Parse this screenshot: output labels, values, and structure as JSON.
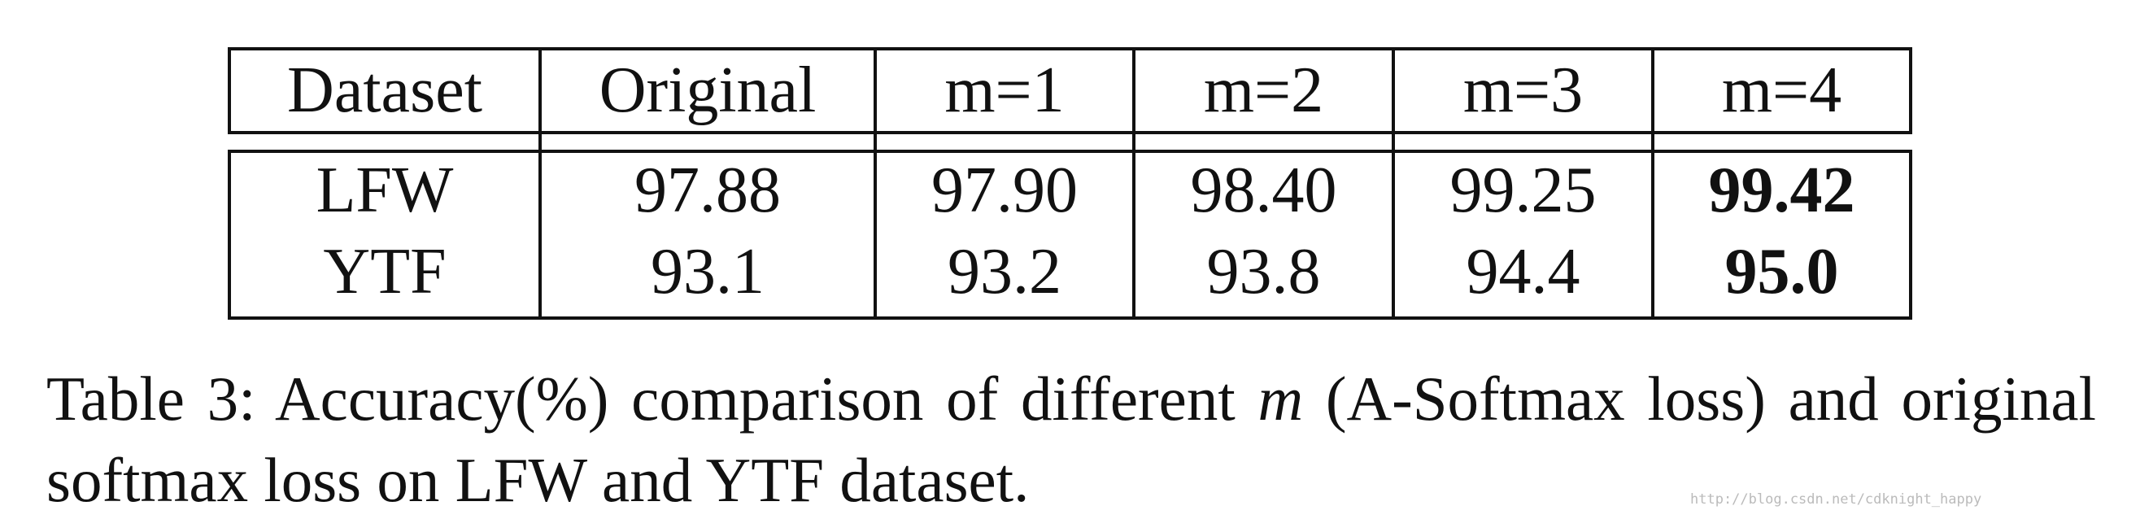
{
  "table": {
    "header": [
      "Dataset",
      "Original",
      "m=1",
      "m=2",
      "m=3",
      "m=4"
    ],
    "rows": [
      [
        "LFW",
        "97.88",
        "97.90",
        "98.40",
        "99.25",
        "99.42"
      ],
      [
        "YTF",
        "93.1",
        "93.2",
        "93.8",
        "94.4",
        "95.0"
      ]
    ],
    "bold_column": 5
  },
  "caption": {
    "label": "Table 3:",
    "text_before": "Accuracy(%) comparison of different",
    "variable": "m",
    "text_after": "(A-Softmax loss) and original softmax loss on LFW and YTF dataset."
  },
  "watermark": "http://blog.csdn.net/cdknight_happy"
}
